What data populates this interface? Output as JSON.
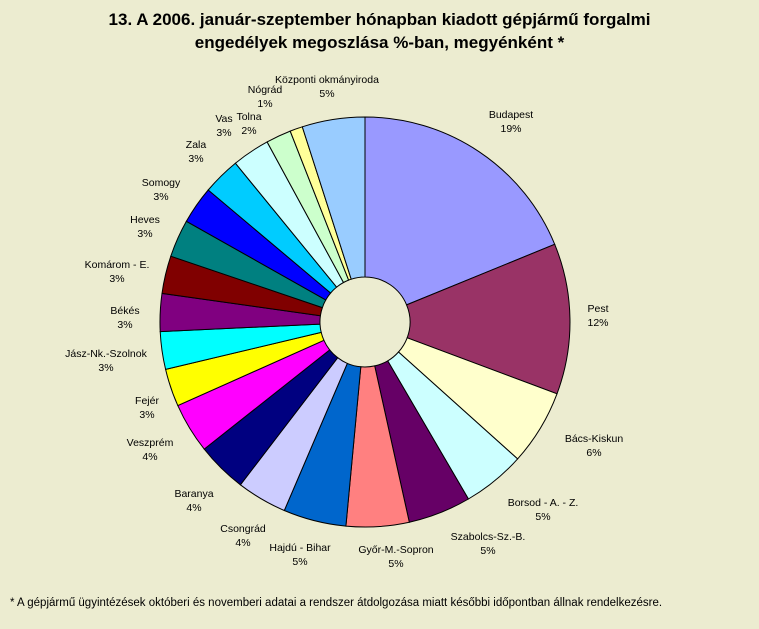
{
  "title_line1": "13. A  2006. január-szeptember hónapban kiadott gépjármű forgalmi",
  "title_line2": "engedélyek megoszlása %-ban, megyénként *",
  "footnote": "* A gépjármű ügyintézések októberi és novemberi adatai a rendszer átdolgozása miatt későbbi időpontban állnak rendelkezésre.",
  "chart_data": {
    "type": "pie",
    "title": "13. A  2006. január-szeptember hónapban kiadott gépjármű forgalmi engedélyek megoszlása %-ban, megyénként *",
    "exploded": true,
    "slices": [
      {
        "name": "Budapest",
        "label": "19%",
        "value": 19,
        "color": "#9999FF"
      },
      {
        "name": "Pest",
        "label": "12%",
        "value": 12,
        "color": "#993366"
      },
      {
        "name": "Bács-Kiskun",
        "label": "6%",
        "value": 6,
        "color": "#FFFFCC"
      },
      {
        "name": "Borsod - A. - Z.",
        "label": "5%",
        "value": 5,
        "color": "#CCFFFF"
      },
      {
        "name": "Szabolcs-Sz.-B.",
        "label": "5%",
        "value": 5,
        "color": "#660066"
      },
      {
        "name": "Győr-M.-Sopron",
        "label": "5%",
        "value": 5,
        "color": "#FF8080"
      },
      {
        "name": "Hajdú - Bihar",
        "label": "5%",
        "value": 5,
        "color": "#0066CC"
      },
      {
        "name": "Csongrád",
        "label": "4%",
        "value": 4,
        "color": "#CCCCFF"
      },
      {
        "name": "Baranya",
        "label": "4%",
        "value": 4,
        "color": "#000080"
      },
      {
        "name": "Veszprém",
        "label": "4%",
        "value": 4,
        "color": "#FF00FF"
      },
      {
        "name": "Fejér",
        "label": "3%",
        "value": 3,
        "color": "#FFFF00"
      },
      {
        "name": "Jász-Nk.-Szolnok",
        "label": "3%",
        "value": 3,
        "color": "#00FFFF"
      },
      {
        "name": "Békés",
        "label": "3%",
        "value": 3,
        "color": "#800080"
      },
      {
        "name": "Komárom - E.",
        "label": "3%",
        "value": 3,
        "color": "#800000"
      },
      {
        "name": "Heves",
        "label": "3%",
        "value": 3,
        "color": "#008080"
      },
      {
        "name": "Somogy",
        "label": "3%",
        "value": 3,
        "color": "#0000FF"
      },
      {
        "name": "Zala",
        "label": "3%",
        "value": 3,
        "color": "#00CCFF"
      },
      {
        "name": "Vas",
        "label": "3%",
        "value": 3,
        "color": "#CCFFFF"
      },
      {
        "name": "Tolna",
        "label": "2%",
        "value": 2,
        "color": "#CCFFCC"
      },
      {
        "name": "Nógrád",
        "label": "1%",
        "value": 1,
        "color": "#FFFF99"
      },
      {
        "name": "Központi okmányiroda",
        "label": "5%",
        "value": 5,
        "color": "#99CCFF"
      }
    ]
  }
}
